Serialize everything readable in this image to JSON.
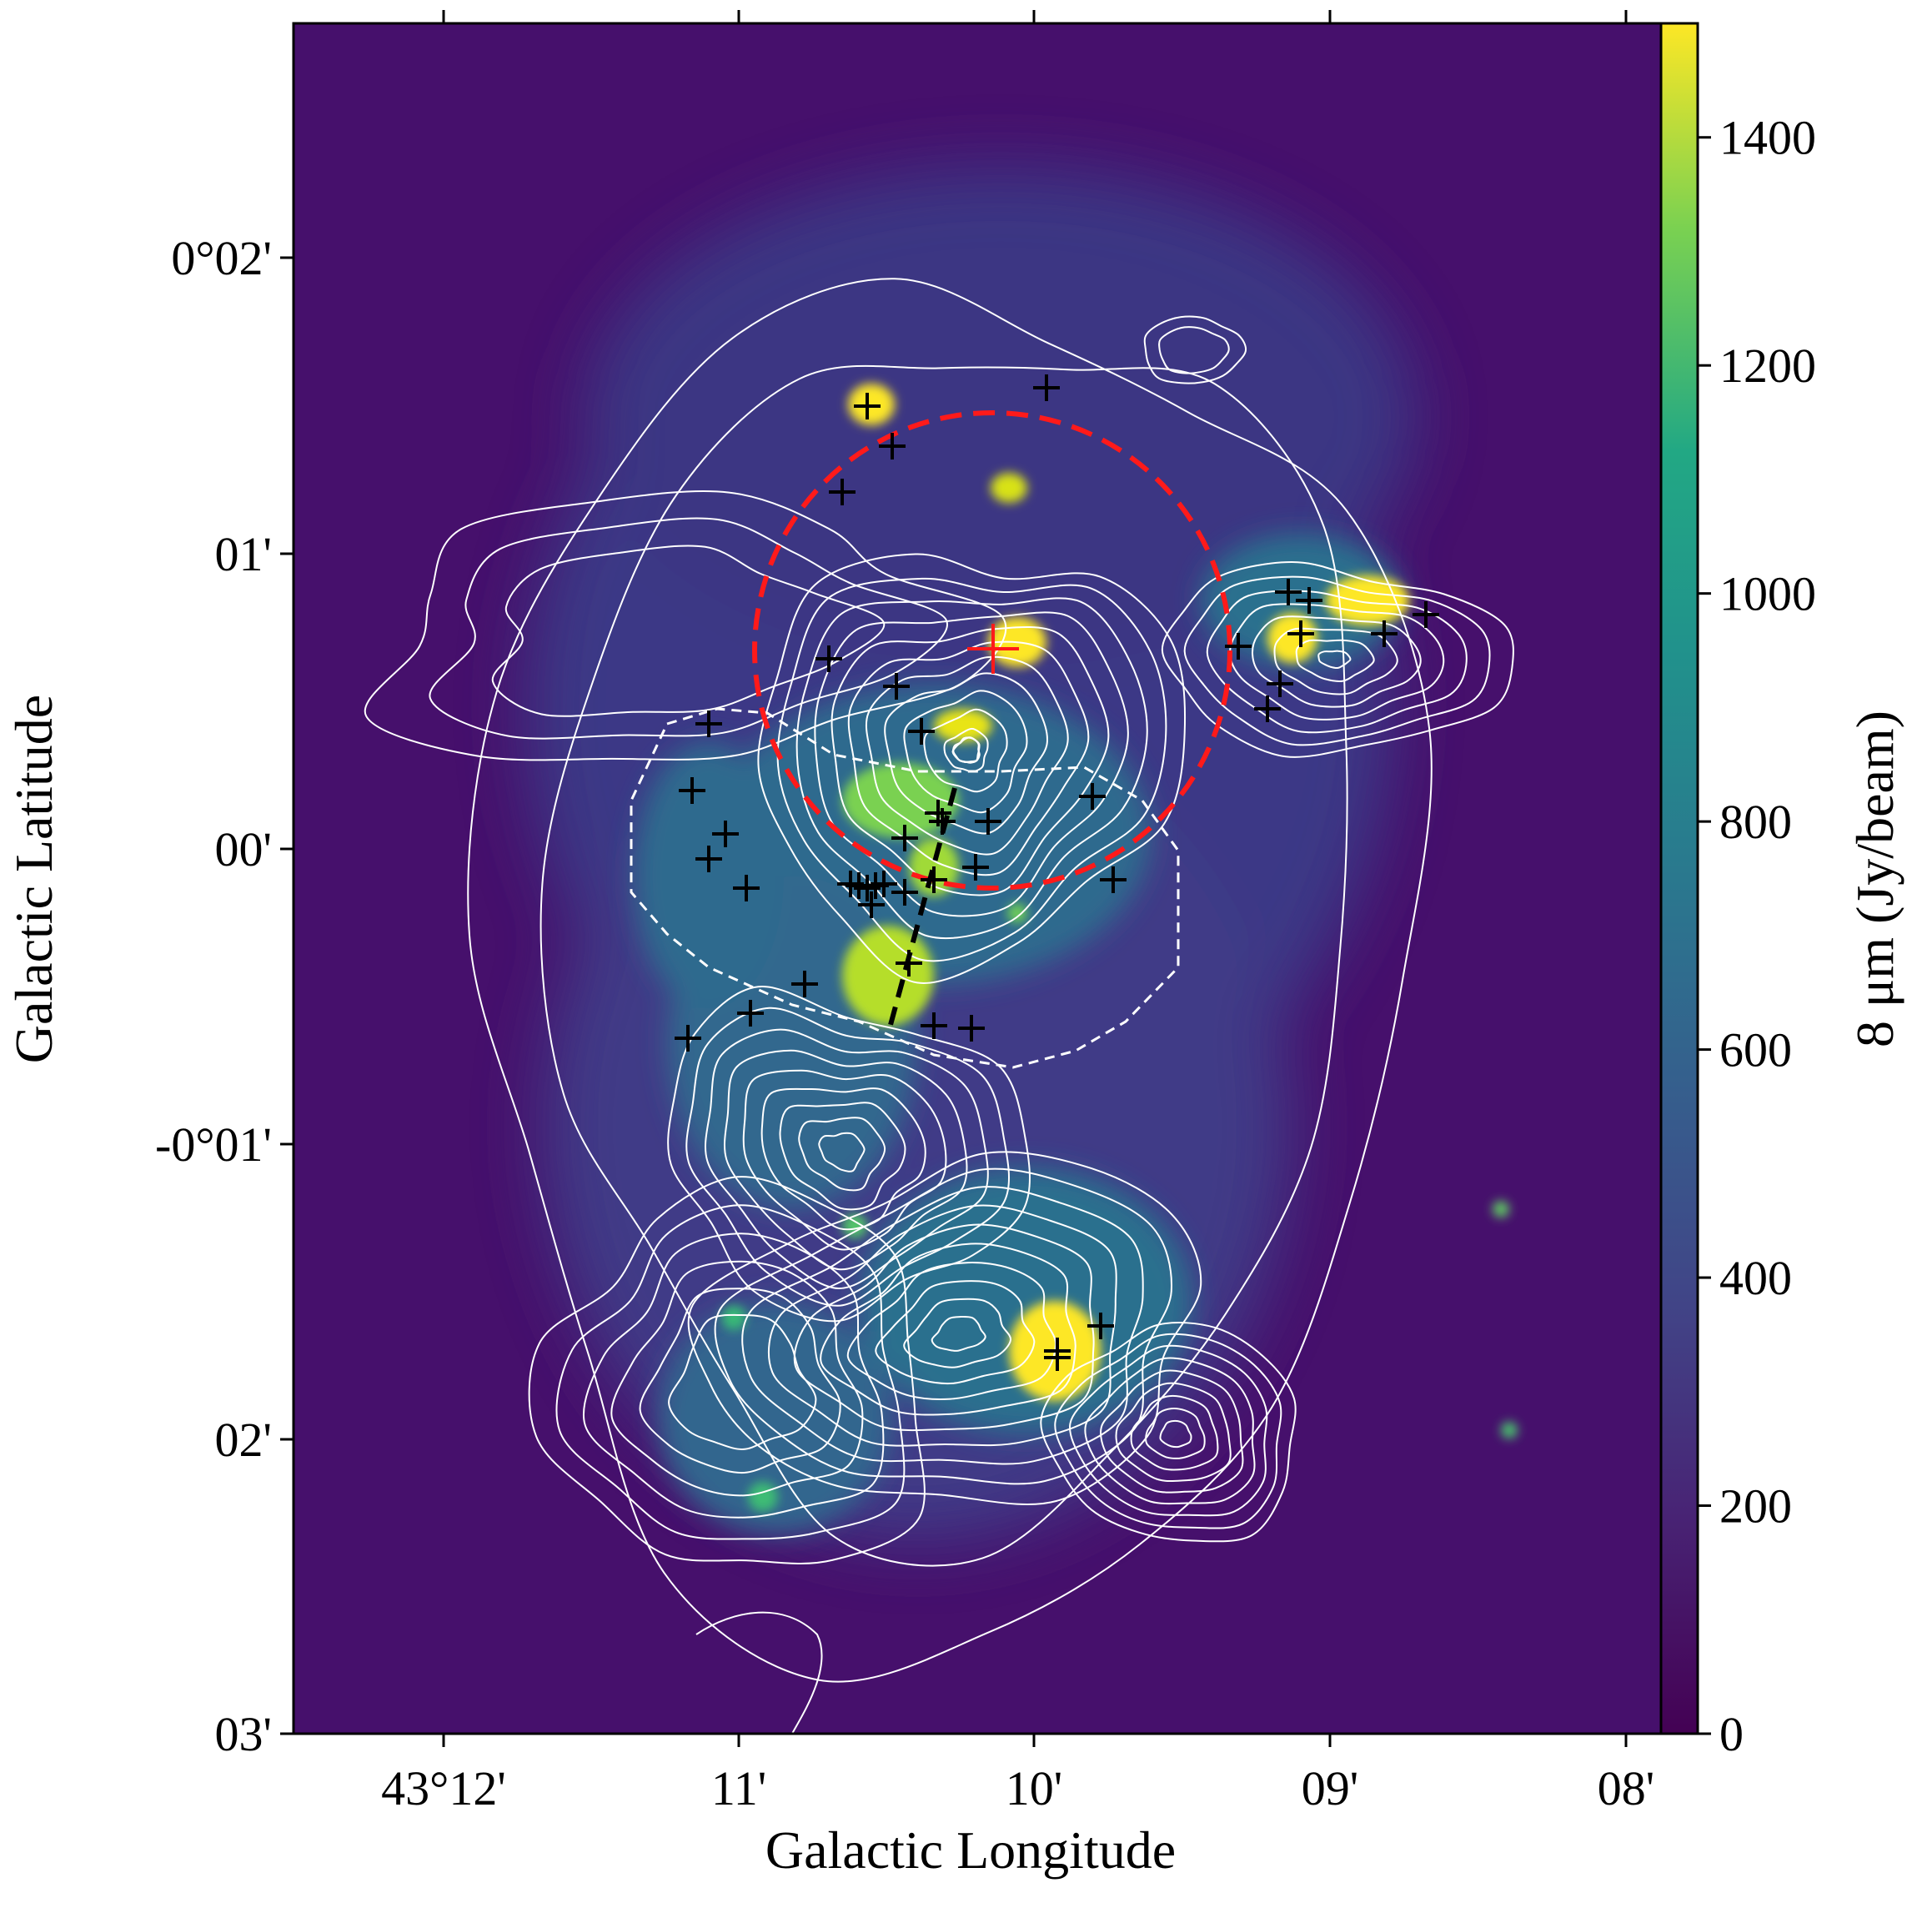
{
  "chart_data": {
    "type": "heatmap",
    "title": "",
    "xlabel": "Galactic Longitude",
    "ylabel": "Galactic Latitude",
    "x_ticks": [
      "43°12'",
      "11'",
      "10'",
      "09'",
      "08'"
    ],
    "y_ticks": [
      "0°02'",
      "01'",
      "00'",
      "-0°01'",
      "02'",
      "03'"
    ],
    "colorbar": {
      "label": "8 μm (Jy/beam)",
      "min": 0,
      "max": 1500,
      "ticks": [
        "0",
        "200",
        "400",
        "600",
        "800",
        "1000",
        "1200",
        "1400"
      ],
      "colormap": "viridis"
    },
    "overlays": {
      "contour_color": "#ffffff",
      "circle_color": "#ff1a1a",
      "boundary_color": "#ffffff",
      "line_color": "#000000",
      "marker_color": "#000000",
      "center_marker_color": "#ff1a1a"
    }
  }
}
